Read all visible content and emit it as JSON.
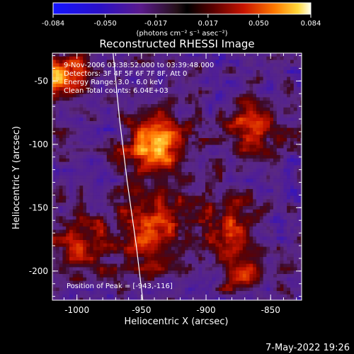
{
  "chart_data": {
    "type": "heatmap",
    "title": "Reconstructed RHESSI Image",
    "xlabel": "Heliocentric X (arcsec)",
    "ylabel": "Heliocentric Y (arcsec)",
    "xlim": [
      -1019,
      -826
    ],
    "ylim": [
      -223,
      -28
    ],
    "x_ticks": [
      -1000,
      -950,
      -900,
      -850
    ],
    "y_ticks": [
      -50,
      -100,
      -150,
      -200
    ],
    "x_tick_labels": [
      "-1000",
      "-950",
      "-900",
      "-850"
    ],
    "y_tick_labels": [
      "-50",
      "-100",
      "-150",
      "-200"
    ],
    "colorbar": {
      "range": [
        -0.084,
        0.084
      ],
      "ticks": [
        -0.084,
        -0.05,
        -0.017,
        0.017,
        0.05,
        0.084
      ],
      "tick_labels": [
        "-0.084",
        "-0.050",
        "-0.017",
        "0.017",
        "0.050",
        "0.084"
      ],
      "unit_label": "(photons cm⁻² s⁻¹ asec⁻²)"
    },
    "annotations": [
      "9-Nov-2006 03:38:52.000 to 03:39:48.000",
      "Detectors: 3F 4F 5F 6F 7F 8F, Att 0",
      "Energy Range: 3.0 - 6.0 keV",
      "Clean    Total counts: 6.04E+03"
    ],
    "peak_label": "Position of Peak = [-943,-116]",
    "peak_position": [
      -943,
      -116
    ],
    "limb_curve_points": [
      [
        -972,
        -28
      ],
      [
        -967,
        -80
      ],
      [
        -961,
        -130
      ],
      [
        -954,
        -180
      ],
      [
        -949,
        -223
      ]
    ],
    "sources": [
      {
        "x": -940,
        "y": -100,
        "sigma": 16,
        "amp": 0.084
      },
      {
        "x": -1012,
        "y": -48,
        "sigma": 14,
        "amp": 0.072
      },
      {
        "x": -866,
        "y": -85,
        "sigma": 12,
        "amp": 0.065
      },
      {
        "x": -940,
        "y": -170,
        "sigma": 22,
        "amp": 0.055
      },
      {
        "x": -1000,
        "y": -180,
        "sigma": 15,
        "amp": 0.045
      },
      {
        "x": -882,
        "y": -162,
        "sigma": 14,
        "amp": 0.04
      },
      {
        "x": -870,
        "y": -200,
        "sigma": 12,
        "amp": 0.045
      }
    ]
  },
  "footer": {
    "timestamp": "7-May-2022 19:26"
  }
}
